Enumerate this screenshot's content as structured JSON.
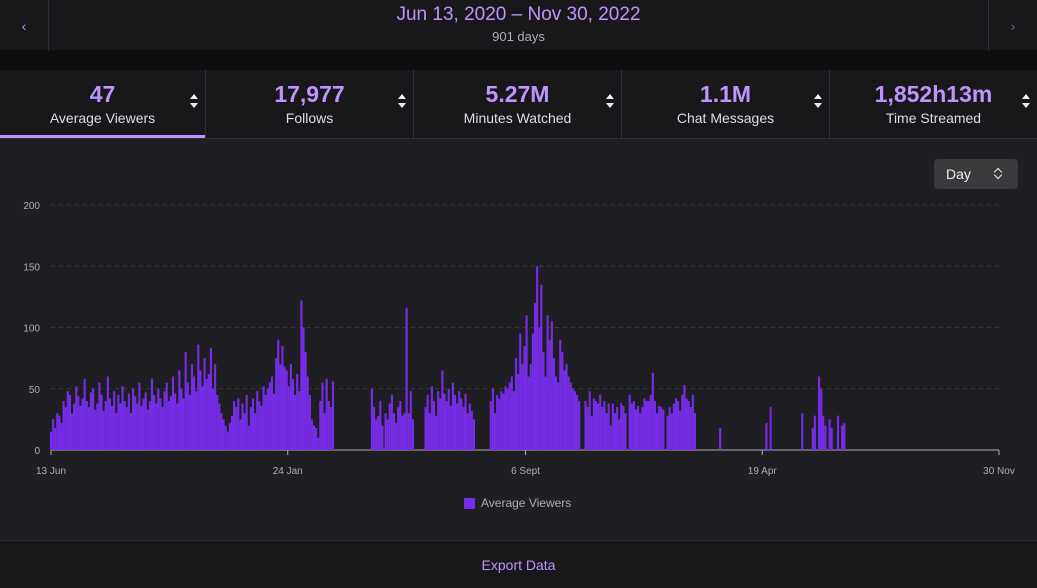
{
  "header": {
    "prev_icon": "chevron-left-icon",
    "next_icon": "chevron-right-icon",
    "date_range": "Jun 13, 2020 – Nov 30, 2022",
    "days": "901 days"
  },
  "stats": [
    {
      "value": "47",
      "label": "Average Viewers",
      "active": true
    },
    {
      "value": "17,977",
      "label": "Follows",
      "active": false
    },
    {
      "value": "5.27M",
      "label": "Minutes Watched",
      "active": false
    },
    {
      "value": "1.1M",
      "label": "Chat Messages",
      "active": false
    },
    {
      "value": "1,852h13m",
      "label": "Time Streamed",
      "active": false
    }
  ],
  "granularity": {
    "selected": "Day"
  },
  "colors": {
    "accent": "#bf94ff",
    "bar": "#772ce8",
    "background": "#1f1f23",
    "panel": "#18181b"
  },
  "chart_data": {
    "type": "bar",
    "title": "",
    "xlabel": "",
    "ylabel": "",
    "ylim": [
      0,
      200
    ],
    "yticks": [
      "0",
      "50",
      "100",
      "150",
      "200"
    ],
    "x_range_days": [
      0,
      901
    ],
    "xticks": [
      {
        "day": 0,
        "label": "13 Jun"
      },
      {
        "day": 225,
        "label": "24 Jan"
      },
      {
        "day": 451,
        "label": "6 Sept"
      },
      {
        "day": 676,
        "label": "19 Apr"
      },
      {
        "day": 901,
        "label": "30 Nov"
      }
    ],
    "legend": {
      "position": "bottom",
      "label": "Average Viewers"
    },
    "series": [
      {
        "name": "Average Viewers",
        "points": [
          [
            0,
            15
          ],
          [
            2,
            25
          ],
          [
            4,
            18
          ],
          [
            6,
            30
          ],
          [
            8,
            28
          ],
          [
            10,
            22
          ],
          [
            12,
            40
          ],
          [
            14,
            35
          ],
          [
            16,
            48
          ],
          [
            18,
            45
          ],
          [
            20,
            30
          ],
          [
            22,
            38
          ],
          [
            24,
            52
          ],
          [
            26,
            44
          ],
          [
            28,
            36
          ],
          [
            30,
            42
          ],
          [
            32,
            58
          ],
          [
            34,
            40
          ],
          [
            36,
            35
          ],
          [
            38,
            47
          ],
          [
            40,
            50
          ],
          [
            42,
            33
          ],
          [
            44,
            38
          ],
          [
            46,
            55
          ],
          [
            48,
            45
          ],
          [
            50,
            32
          ],
          [
            52,
            40
          ],
          [
            54,
            60
          ],
          [
            56,
            42
          ],
          [
            58,
            36
          ],
          [
            60,
            48
          ],
          [
            62,
            30
          ],
          [
            64,
            45
          ],
          [
            66,
            38
          ],
          [
            68,
            52
          ],
          [
            70,
            40
          ],
          [
            72,
            35
          ],
          [
            74,
            46
          ],
          [
            76,
            30
          ],
          [
            78,
            50
          ],
          [
            80,
            44
          ],
          [
            82,
            38
          ],
          [
            84,
            55
          ],
          [
            86,
            36
          ],
          [
            88,
            42
          ],
          [
            90,
            47
          ],
          [
            92,
            33
          ],
          [
            94,
            40
          ],
          [
            96,
            58
          ],
          [
            98,
            45
          ],
          [
            100,
            38
          ],
          [
            102,
            50
          ],
          [
            104,
            42
          ],
          [
            106,
            35
          ],
          [
            108,
            48
          ],
          [
            110,
            55
          ],
          [
            112,
            40
          ],
          [
            114,
            44
          ],
          [
            116,
            60
          ],
          [
            118,
            46
          ],
          [
            120,
            38
          ],
          [
            122,
            65
          ],
          [
            124,
            50
          ],
          [
            126,
            42
          ],
          [
            128,
            80
          ],
          [
            130,
            55
          ],
          [
            132,
            45
          ],
          [
            134,
            70
          ],
          [
            136,
            60
          ],
          [
            138,
            48
          ],
          [
            140,
            86
          ],
          [
            142,
            65
          ],
          [
            144,
            52
          ],
          [
            146,
            75
          ],
          [
            148,
            58
          ],
          [
            150,
            62
          ],
          [
            152,
            83
          ],
          [
            154,
            50
          ],
          [
            156,
            70
          ],
          [
            158,
            45
          ],
          [
            160,
            38
          ],
          [
            162,
            30
          ],
          [
            164,
            25
          ],
          [
            166,
            20
          ],
          [
            168,
            15
          ],
          [
            170,
            22
          ],
          [
            172,
            28
          ],
          [
            174,
            40
          ],
          [
            176,
            35
          ],
          [
            178,
            42
          ],
          [
            180,
            25
          ],
          [
            182,
            38
          ],
          [
            184,
            30
          ],
          [
            186,
            45
          ],
          [
            188,
            20
          ],
          [
            190,
            35
          ],
          [
            192,
            42
          ],
          [
            194,
            30
          ],
          [
            196,
            48
          ],
          [
            198,
            40
          ],
          [
            200,
            36
          ],
          [
            202,
            52
          ],
          [
            204,
            45
          ],
          [
            206,
            50
          ],
          [
            208,
            55
          ],
          [
            210,
            60
          ],
          [
            212,
            46
          ],
          [
            214,
            75
          ],
          [
            216,
            90
          ],
          [
            218,
            70
          ],
          [
            220,
            85
          ],
          [
            222,
            68
          ],
          [
            224,
            65
          ],
          [
            226,
            52
          ],
          [
            228,
            70
          ],
          [
            230,
            58
          ],
          [
            232,
            45
          ],
          [
            234,
            62
          ],
          [
            236,
            48
          ],
          [
            238,
            122
          ],
          [
            240,
            100
          ],
          [
            242,
            80
          ],
          [
            244,
            60
          ],
          [
            246,
            45
          ],
          [
            248,
            25
          ],
          [
            250,
            20
          ],
          [
            252,
            18
          ],
          [
            254,
            10
          ],
          [
            256,
            40
          ],
          [
            258,
            55
          ],
          [
            260,
            30
          ],
          [
            262,
            58
          ],
          [
            264,
            40
          ],
          [
            266,
            35
          ],
          [
            268,
            56
          ],
          [
            305,
            50
          ],
          [
            307,
            35
          ],
          [
            309,
            25
          ],
          [
            311,
            28
          ],
          [
            313,
            40
          ],
          [
            315,
            20
          ],
          [
            318,
            30
          ],
          [
            320,
            25
          ],
          [
            322,
            38
          ],
          [
            324,
            45
          ],
          [
            326,
            30
          ],
          [
            328,
            22
          ],
          [
            330,
            35
          ],
          [
            332,
            40
          ],
          [
            334,
            28
          ],
          [
            336,
            30
          ],
          [
            338,
            116
          ],
          [
            340,
            30
          ],
          [
            342,
            48
          ],
          [
            344,
            25
          ],
          [
            356,
            35
          ],
          [
            358,
            45
          ],
          [
            360,
            30
          ],
          [
            362,
            52
          ],
          [
            364,
            40
          ],
          [
            366,
            28
          ],
          [
            368,
            48
          ],
          [
            370,
            42
          ],
          [
            372,
            65
          ],
          [
            374,
            46
          ],
          [
            376,
            40
          ],
          [
            378,
            50
          ],
          [
            380,
            36
          ],
          [
            382,
            55
          ],
          [
            384,
            45
          ],
          [
            386,
            38
          ],
          [
            388,
            48
          ],
          [
            390,
            42
          ],
          [
            392,
            35
          ],
          [
            394,
            46
          ],
          [
            396,
            30
          ],
          [
            398,
            38
          ],
          [
            400,
            32
          ],
          [
            402,
            25
          ],
          [
            418,
            40
          ],
          [
            420,
            50
          ],
          [
            422,
            30
          ],
          [
            424,
            45
          ],
          [
            426,
            42
          ],
          [
            428,
            48
          ],
          [
            430,
            46
          ],
          [
            432,
            52
          ],
          [
            434,
            50
          ],
          [
            436,
            55
          ],
          [
            438,
            60
          ],
          [
            440,
            48
          ],
          [
            442,
            75
          ],
          [
            444,
            62
          ],
          [
            446,
            95
          ],
          [
            448,
            70
          ],
          [
            450,
            85
          ],
          [
            452,
            110
          ],
          [
            454,
            60
          ],
          [
            456,
            70
          ],
          [
            458,
            95
          ],
          [
            460,
            120
          ],
          [
            462,
            150
          ],
          [
            464,
            100
          ],
          [
            466,
            135
          ],
          [
            468,
            80
          ],
          [
            470,
            60
          ],
          [
            472,
            110
          ],
          [
            474,
            90
          ],
          [
            476,
            105
          ],
          [
            478,
            75
          ],
          [
            480,
            60
          ],
          [
            482,
            55
          ],
          [
            484,
            90
          ],
          [
            486,
            80
          ],
          [
            488,
            65
          ],
          [
            490,
            70
          ],
          [
            492,
            60
          ],
          [
            494,
            55
          ],
          [
            496,
            50
          ],
          [
            498,
            48
          ],
          [
            500,
            45
          ],
          [
            502,
            40
          ],
          [
            508,
            40
          ],
          [
            510,
            35
          ],
          [
            512,
            48
          ],
          [
            514,
            28
          ],
          [
            516,
            42
          ],
          [
            518,
            40
          ],
          [
            520,
            38
          ],
          [
            522,
            45
          ],
          [
            524,
            35
          ],
          [
            526,
            40
          ],
          [
            528,
            30
          ],
          [
            530,
            38
          ],
          [
            532,
            20
          ],
          [
            534,
            38
          ],
          [
            536,
            30
          ],
          [
            538,
            35
          ],
          [
            540,
            25
          ],
          [
            542,
            38
          ],
          [
            544,
            36
          ],
          [
            546,
            30
          ],
          [
            550,
            45
          ],
          [
            552,
            38
          ],
          [
            554,
            40
          ],
          [
            556,
            33
          ],
          [
            558,
            36
          ],
          [
            560,
            30
          ],
          [
            562,
            35
          ],
          [
            564,
            42
          ],
          [
            566,
            40
          ],
          [
            568,
            40
          ],
          [
            570,
            45
          ],
          [
            572,
            63
          ],
          [
            574,
            40
          ],
          [
            576,
            30
          ],
          [
            578,
            36
          ],
          [
            580,
            35
          ],
          [
            582,
            33
          ],
          [
            586,
            28
          ],
          [
            588,
            35
          ],
          [
            590,
            30
          ],
          [
            592,
            38
          ],
          [
            594,
            42
          ],
          [
            596,
            40
          ],
          [
            598,
            32
          ],
          [
            600,
            45
          ],
          [
            602,
            53
          ],
          [
            604,
            42
          ],
          [
            606,
            40
          ],
          [
            608,
            35
          ],
          [
            610,
            45
          ],
          [
            612,
            30
          ]
        ],
        "isolated_points": [
          [
            636,
            18
          ],
          [
            680,
            22
          ],
          [
            684,
            35
          ],
          [
            714,
            30
          ],
          [
            724,
            18
          ],
          [
            726,
            28
          ],
          [
            730,
            60
          ],
          [
            732,
            50
          ],
          [
            734,
            28
          ],
          [
            736,
            20
          ],
          [
            740,
            25
          ],
          [
            742,
            18
          ],
          [
            748,
            28
          ],
          [
            752,
            20
          ],
          [
            754,
            22
          ]
        ]
      }
    ]
  },
  "footer": {
    "export_label": "Export Data"
  }
}
